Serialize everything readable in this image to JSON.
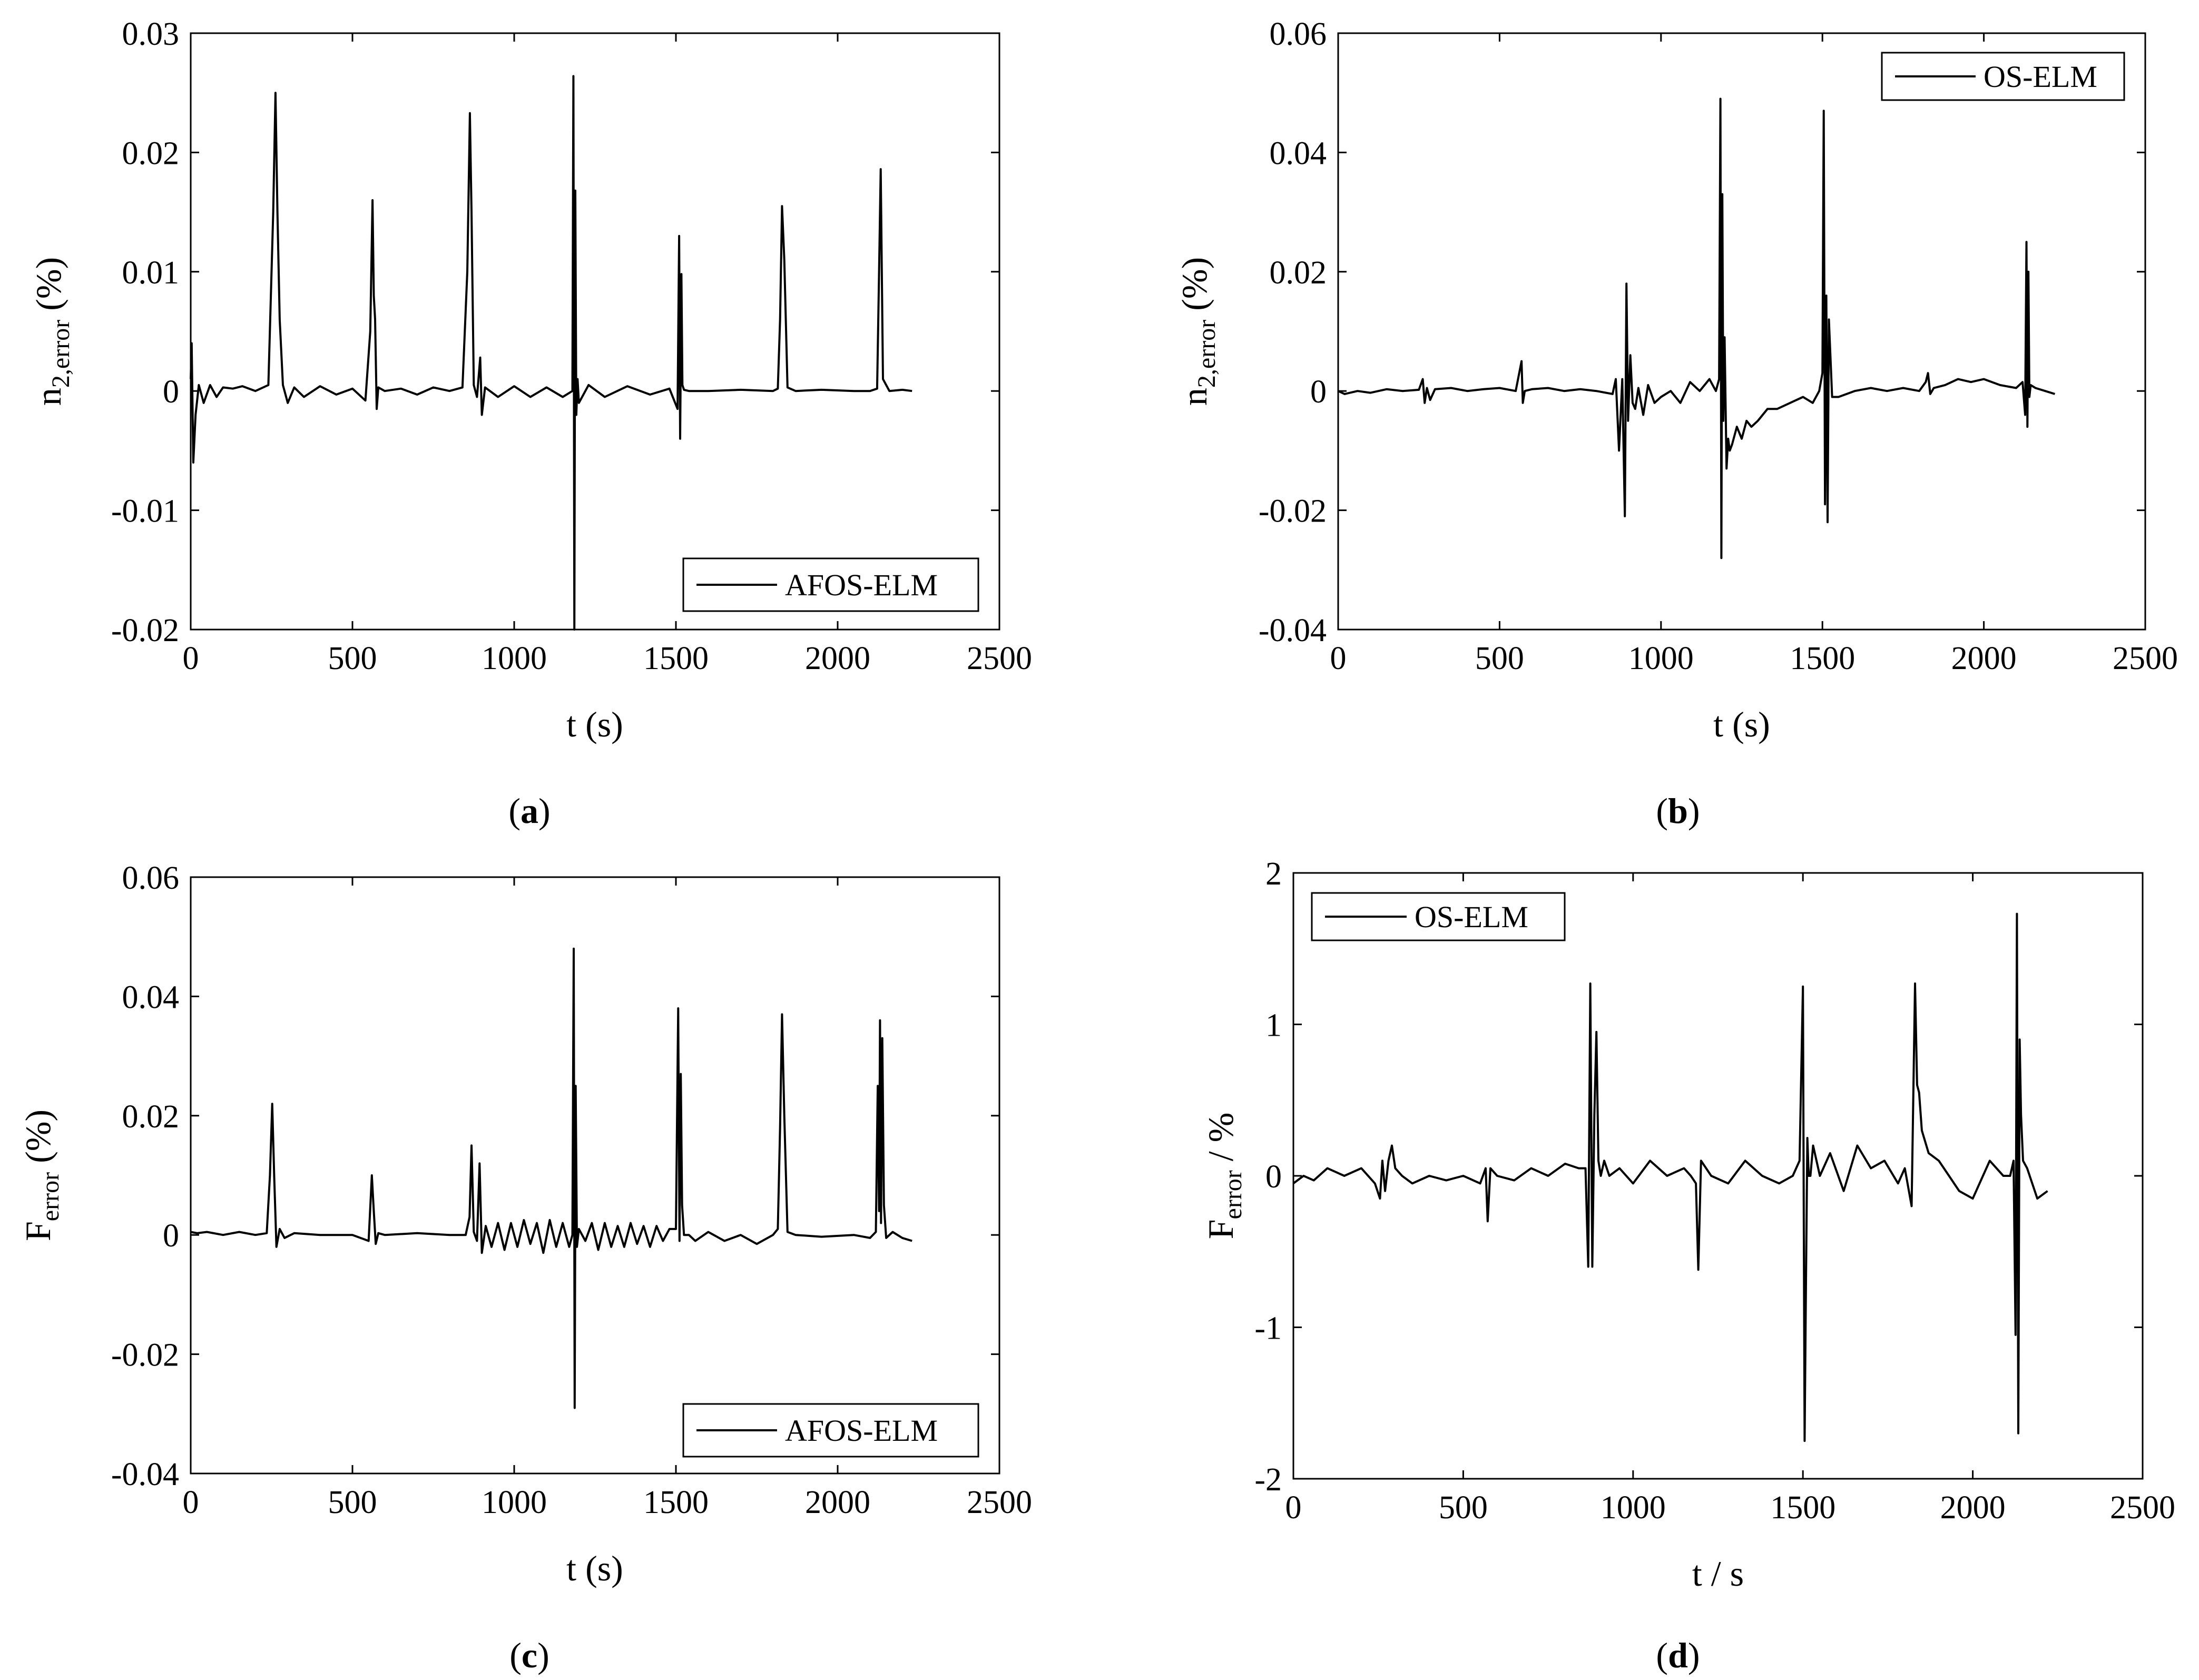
{
  "chart_data": [
    {
      "id": "a",
      "type": "line",
      "caption": "a",
      "xlabel": "t (s)",
      "ylabel": {
        "main": "n",
        "sub": "2,error",
        "suffix": " (%)"
      },
      "xlim": [
        0,
        2500
      ],
      "ylim": [
        -0.02,
        0.03
      ],
      "xticks": [
        0,
        500,
        1000,
        1500,
        2000,
        2500
      ],
      "yticks": [
        -0.02,
        -0.01,
        0,
        0.01,
        0.02,
        0.03
      ],
      "xtick_labels": [
        "0",
        "500",
        "1000",
        "1500",
        "2000",
        "2500"
      ],
      "ytick_labels": [
        "-0.02",
        "-0.01",
        "0",
        "0.01",
        "0.02",
        "0.03"
      ],
      "legend": {
        "label": "AFOS-ELM",
        "position": "bottom-right"
      },
      "series": [
        {
          "name": "AFOS-ELM",
          "color": "#000000",
          "x": [
            0,
            3,
            8,
            15,
            25,
            40,
            60,
            80,
            100,
            130,
            160,
            200,
            240,
            255,
            262,
            268,
            275,
            285,
            300,
            320,
            350,
            400,
            450,
            500,
            540,
            555,
            562,
            566,
            570,
            575,
            580,
            600,
            650,
            700,
            750,
            800,
            840,
            855,
            863,
            868,
            875,
            885,
            895,
            900,
            910,
            950,
            1000,
            1050,
            1100,
            1150,
            1180,
            1183,
            1186,
            1189,
            1192,
            1196,
            1200,
            1230,
            1280,
            1350,
            1420,
            1480,
            1505,
            1510,
            1513,
            1517,
            1520,
            1525,
            1540,
            1600,
            1700,
            1800,
            1815,
            1822,
            1828,
            1835,
            1845,
            1870,
            1950,
            2050,
            2100,
            2122,
            2128,
            2133,
            2140,
            2160,
            2200,
            2230
          ],
          "y": [
            0.001,
            0.004,
            -0.006,
            -0.002,
            0.0005,
            -0.001,
            0.0005,
            -0.0005,
            0.0003,
            0.0002,
            0.0004,
            0.0,
            0.0005,
            0.015,
            0.025,
            0.015,
            0.006,
            0.0005,
            -0.001,
            0.0003,
            -0.0005,
            0.0004,
            -0.0003,
            0.0002,
            -0.0008,
            0.005,
            0.016,
            0.008,
            0.006,
            -0.0015,
            0.0003,
            0.0,
            0.0002,
            -0.0003,
            0.0003,
            0.0,
            0.0003,
            0.01,
            0.0233,
            0.015,
            0.0005,
            -0.0005,
            0.0028,
            -0.002,
            0.0003,
            -0.0005,
            0.0004,
            -0.0005,
            0.0003,
            -0.0005,
            0.0,
            0.0264,
            -0.02,
            0.0168,
            -0.002,
            0.001,
            -0.001,
            0.0005,
            -0.0005,
            0.0004,
            -0.0003,
            0.0002,
            -0.0015,
            0.013,
            -0.004,
            0.0098,
            0.0005,
            0.0001,
            0.0,
            0.0,
            0.0001,
            0.0,
            0.0002,
            0.006,
            0.0155,
            0.011,
            0.0003,
            0.0,
            0.0001,
            0.0,
            0.0,
            0.0002,
            0.01,
            0.0186,
            0.001,
            0.0,
            0.0001,
            0.0
          ]
        }
      ]
    },
    {
      "id": "b",
      "type": "line",
      "caption": "b",
      "xlabel": "t (s)",
      "ylabel": {
        "main": "n",
        "sub": "2,error",
        "suffix": " (%)"
      },
      "xlim": [
        0,
        2500
      ],
      "ylim": [
        -0.04,
        0.06
      ],
      "xticks": [
        0,
        500,
        1000,
        1500,
        2000,
        2500
      ],
      "yticks": [
        -0.04,
        -0.02,
        0,
        0.02,
        0.04,
        0.06
      ],
      "xtick_labels": [
        "0",
        "500",
        "1000",
        "1500",
        "2000",
        "2500"
      ],
      "ytick_labels": [
        "-0.04",
        "-0.02",
        "0",
        "0.02",
        "0.04",
        "0.06"
      ],
      "legend": {
        "label": "OS-ELM",
        "position": "top-right"
      },
      "series": [
        {
          "name": "OS-ELM",
          "color": "#000000",
          "x": [
            0,
            20,
            60,
            100,
            150,
            200,
            250,
            262,
            268,
            275,
            285,
            300,
            350,
            400,
            450,
            500,
            550,
            568,
            572,
            578,
            600,
            650,
            700,
            750,
            800,
            850,
            860,
            870,
            880,
            888,
            893,
            898,
            905,
            912,
            920,
            930,
            945,
            960,
            980,
            1000,
            1030,
            1060,
            1090,
            1120,
            1150,
            1170,
            1180,
            1184,
            1187,
            1190,
            1193,
            1197,
            1203,
            1208,
            1213,
            1220,
            1235,
            1250,
            1265,
            1280,
            1300,
            1330,
            1360,
            1400,
            1440,
            1470,
            1490,
            1500,
            1504,
            1508,
            1512,
            1516,
            1520,
            1530,
            1550,
            1600,
            1650,
            1700,
            1750,
            1800,
            1820,
            1827,
            1834,
            1845,
            1880,
            1920,
            1960,
            2000,
            2050,
            2100,
            2120,
            2128,
            2132,
            2135,
            2138,
            2141,
            2145,
            2160,
            2190,
            2220
          ],
          "y": [
            0.0,
            -0.0005,
            0.0,
            -0.0003,
            0.0003,
            0.0,
            0.0002,
            0.002,
            -0.002,
            0.0005,
            -0.0015,
            0.0003,
            0.0005,
            0.0,
            0.0003,
            0.0005,
            0.0,
            0.005,
            -0.002,
            0.0,
            0.0003,
            0.0005,
            0.0,
            0.0003,
            0.0,
            -0.0005,
            0.002,
            -0.01,
            0.002,
            -0.021,
            0.018,
            -0.005,
            0.006,
            -0.002,
            -0.003,
            0.0005,
            -0.004,
            0.001,
            -0.002,
            -0.001,
            0.0,
            -0.002,
            0.0015,
            0.0,
            0.002,
            0.0,
            0.002,
            0.049,
            -0.028,
            0.033,
            -0.005,
            0.009,
            -0.013,
            -0.008,
            -0.01,
            -0.009,
            -0.006,
            -0.008,
            -0.005,
            -0.006,
            -0.005,
            -0.003,
            -0.003,
            -0.002,
            -0.001,
            -0.002,
            0.0,
            0.003,
            0.047,
            -0.019,
            0.016,
            -0.022,
            0.012,
            -0.001,
            -0.001,
            0.0,
            0.0005,
            0.0,
            0.0005,
            0.0,
            0.0015,
            0.003,
            -0.0005,
            0.0005,
            0.001,
            0.002,
            0.0015,
            0.002,
            0.001,
            0.0005,
            0.0015,
            -0.004,
            0.025,
            -0.006,
            0.02,
            -0.001,
            0.001,
            0.0005,
            0.0,
            -0.0005
          ]
        }
      ]
    },
    {
      "id": "c",
      "type": "line",
      "caption": "c",
      "xlabel": "t (s)",
      "ylabel": {
        "main": "F",
        "sub": "error",
        "suffix": " (%)"
      },
      "xlim": [
        0,
        2500
      ],
      "ylim": [
        -0.04,
        0.06
      ],
      "xticks": [
        0,
        500,
        1000,
        1500,
        2000,
        2500
      ],
      "yticks": [
        -0.04,
        -0.02,
        0,
        0.02,
        0.04,
        0.06
      ],
      "xtick_labels": [
        "0",
        "500",
        "1000",
        "1500",
        "2000",
        "2500"
      ],
      "ytick_labels": [
        "-0.04",
        "-0.02",
        "0",
        "0.02",
        "0.04",
        "0.06"
      ],
      "legend": {
        "label": "AFOS-ELM",
        "position": "bottom-right"
      },
      "series": [
        {
          "name": "AFOS-ELM",
          "color": "#000000",
          "x": [
            0,
            20,
            50,
            100,
            150,
            200,
            235,
            245,
            252,
            258,
            265,
            275,
            290,
            320,
            400,
            500,
            550,
            560,
            566,
            572,
            580,
            600,
            700,
            800,
            850,
            862,
            868,
            875,
            885,
            893,
            900,
            912,
            930,
            950,
            970,
            990,
            1010,
            1030,
            1050,
            1070,
            1090,
            1110,
            1130,
            1150,
            1170,
            1180,
            1184,
            1187,
            1190,
            1194,
            1200,
            1220,
            1240,
            1260,
            1280,
            1300,
            1320,
            1340,
            1360,
            1380,
            1400,
            1420,
            1440,
            1460,
            1480,
            1500,
            1507,
            1511,
            1515,
            1519,
            1525,
            1540,
            1560,
            1600,
            1650,
            1700,
            1750,
            1800,
            1815,
            1822,
            1828,
            1835,
            1845,
            1870,
            1950,
            2050,
            2100,
            2118,
            2124,
            2128,
            2131,
            2134,
            2138,
            2143,
            2150,
            2170,
            2200,
            2230
          ],
          "y": [
            0.0005,
            0.0003,
            0.0005,
            0.0,
            0.0005,
            0.0,
            0.0003,
            0.01,
            0.022,
            0.01,
            -0.002,
            0.001,
            -0.0005,
            0.0003,
            0.0,
            0.0,
            -0.001,
            0.01,
            0.004,
            -0.0015,
            0.0003,
            0.0,
            0.0003,
            0.0,
            0.0,
            0.003,
            0.015,
            0.0005,
            -0.001,
            0.012,
            -0.003,
            0.0015,
            -0.002,
            0.002,
            -0.0025,
            0.002,
            -0.002,
            0.0025,
            -0.0015,
            0.002,
            -0.003,
            0.0025,
            -0.002,
            0.002,
            -0.002,
            0.0,
            0.048,
            -0.029,
            0.025,
            -0.002,
            0.001,
            -0.001,
            0.002,
            -0.0025,
            0.002,
            -0.002,
            0.0015,
            -0.002,
            0.002,
            -0.0015,
            0.0015,
            -0.002,
            0.0015,
            -0.001,
            0.001,
            0.001,
            0.038,
            -0.001,
            0.027,
            0.005,
            0.0,
            0.0,
            -0.001,
            0.0005,
            -0.001,
            0.0,
            -0.0015,
            0.0,
            0.001,
            0.018,
            0.037,
            0.02,
            0.0005,
            0.0,
            -0.0003,
            0.0,
            -0.0005,
            0.0005,
            0.025,
            0.004,
            0.036,
            0.002,
            0.033,
            0.005,
            -0.0005,
            0.0005,
            -0.0005,
            -0.001
          ]
        }
      ]
    },
    {
      "id": "d",
      "type": "line",
      "caption": "d",
      "xlabel": "t / s",
      "ylabel": {
        "main": "F",
        "sub": "error",
        "suffix": " / %"
      },
      "xlim": [
        0,
        2500
      ],
      "ylim": [
        -2,
        2
      ],
      "xticks": [
        0,
        500,
        1000,
        1500,
        2000,
        2500
      ],
      "yticks": [
        -2,
        -1,
        0,
        1,
        2
      ],
      "xtick_labels": [
        "0",
        "500",
        "1000",
        "1500",
        "2000",
        "2500"
      ],
      "ytick_labels": [
        "-2",
        "-1",
        "0",
        "1",
        "2"
      ],
      "legend": {
        "label": "OS-ELM",
        "position": "top-left"
      },
      "series": [
        {
          "name": "OS-ELM",
          "color": "#000000",
          "x": [
            0,
            30,
            60,
            100,
            150,
            200,
            240,
            255,
            262,
            270,
            280,
            290,
            300,
            320,
            350,
            400,
            450,
            500,
            550,
            566,
            572,
            580,
            600,
            650,
            700,
            750,
            800,
            840,
            860,
            868,
            874,
            880,
            886,
            892,
            898,
            905,
            915,
            930,
            960,
            1000,
            1050,
            1100,
            1150,
            1170,
            1185,
            1192,
            1200,
            1230,
            1280,
            1330,
            1380,
            1430,
            1470,
            1490,
            1500,
            1505,
            1509,
            1513,
            1517,
            1522,
            1530,
            1550,
            1580,
            1620,
            1660,
            1700,
            1740,
            1780,
            1800,
            1820,
            1830,
            1836,
            1842,
            1850,
            1870,
            1900,
            1930,
            1960,
            2000,
            2050,
            2090,
            2110,
            2120,
            2126,
            2130,
            2134,
            2138,
            2142,
            2148,
            2160,
            2190,
            2220
          ],
          "y": [
            -0.05,
            0.0,
            -0.03,
            0.05,
            0.0,
            0.05,
            -0.05,
            -0.15,
            0.1,
            -0.1,
            0.1,
            0.2,
            0.05,
            0.0,
            -0.05,
            0.0,
            -0.03,
            0.0,
            -0.05,
            0.05,
            -0.3,
            0.05,
            0.0,
            -0.03,
            0.05,
            0.0,
            0.08,
            0.05,
            0.05,
            -0.6,
            1.27,
            -0.6,
            0.4,
            0.95,
            0.1,
            0.0,
            0.1,
            0.0,
            0.05,
            -0.05,
            0.1,
            0.0,
            0.05,
            0.0,
            -0.05,
            -0.62,
            0.1,
            0.0,
            -0.05,
            0.1,
            0.0,
            -0.05,
            0.0,
            0.1,
            1.25,
            -1.75,
            -0.7,
            0.25,
            0.0,
            0.0,
            0.2,
            0.0,
            0.15,
            -0.1,
            0.2,
            0.05,
            0.1,
            -0.05,
            0.05,
            -0.2,
            1.27,
            0.6,
            0.55,
            0.3,
            0.15,
            0.1,
            0.0,
            -0.1,
            -0.15,
            0.1,
            0.0,
            0.0,
            0.1,
            -1.05,
            1.73,
            -1.7,
            0.9,
            0.4,
            0.1,
            0.05,
            -0.15,
            -0.1
          ]
        }
      ]
    }
  ]
}
